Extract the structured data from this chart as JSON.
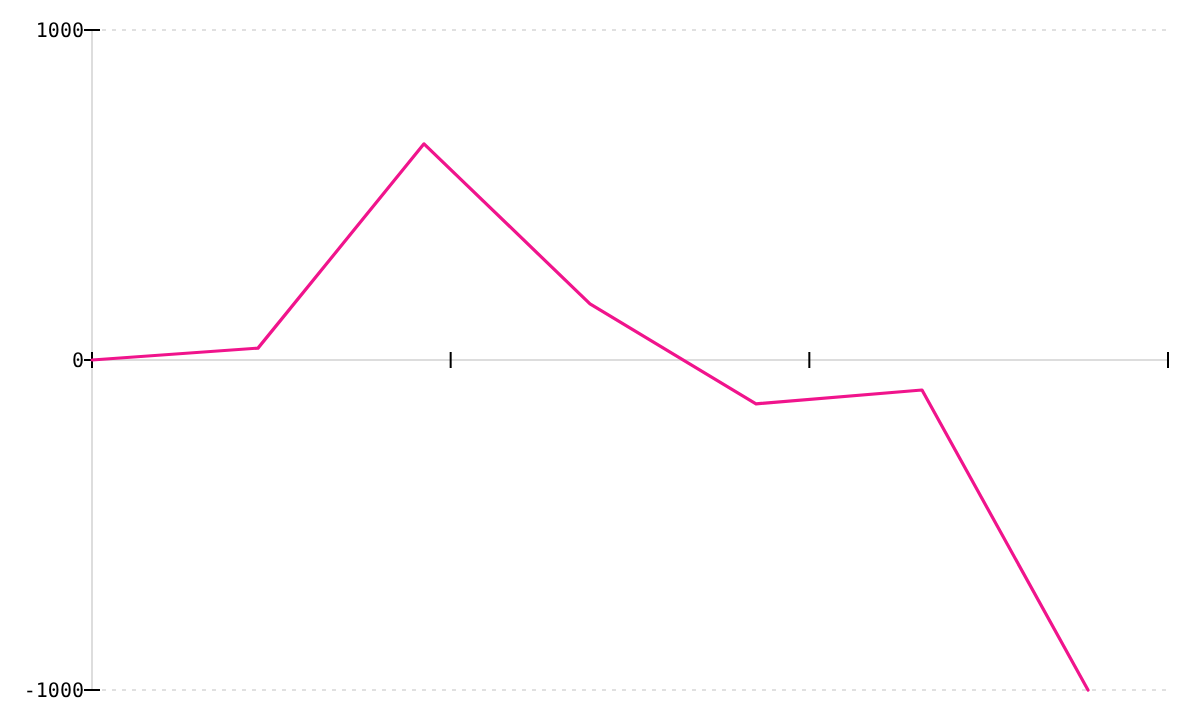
{
  "chart_data": {
    "type": "line",
    "categories": [
      null,
      null,
      null,
      null,
      null,
      null,
      null
    ],
    "series": [
      {
        "color": "#f0148c",
        "values": [
          0,
          36,
          655,
          170,
          -133,
          -91,
          -1000
        ]
      }
    ],
    "ylim": [
      -1000,
      1000
    ],
    "yticks": [
      -1000,
      0,
      1000
    ],
    "grid": "y",
    "marker": "none",
    "line_style": "solid"
  }
}
